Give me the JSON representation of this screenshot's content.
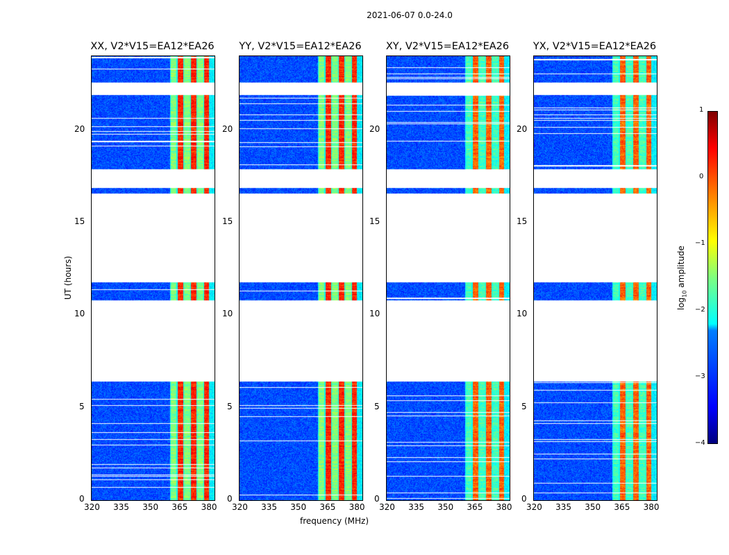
{
  "suptitle": "2021-06-07 0.0-24.0",
  "chart_data": {
    "type": "heatmap",
    "panels": [
      {
        "title": "XX, V2*V15=EA12*EA26"
      },
      {
        "title": "YY, V2*V15=EA12*EA26"
      },
      {
        "title": "XY, V2*V15=EA12*EA26"
      },
      {
        "title": "YX, V2*V15=EA12*EA26"
      }
    ],
    "xlabel": "frequency (MHz)",
    "ylabel": "UT (hours)",
    "xlim": [
      320,
      383
    ],
    "ylim": [
      0,
      24
    ],
    "xticks": [
      "320",
      "335",
      "350",
      "365",
      "380"
    ],
    "yticks": [
      "0",
      "5",
      "10",
      "15",
      "20"
    ],
    "data_time_segments_hours": [
      [
        0,
        6.45
      ],
      [
        10.8,
        11.8
      ],
      [
        16.6,
        16.9
      ],
      [
        17.9,
        21.9
      ],
      [
        22.6,
        24
      ]
    ],
    "bright_band_mhz": [
      360,
      380
    ],
    "typical_log10_amplitude": {
      "background": -3.0,
      "band_low": -1.5,
      "band_high": 0.2
    },
    "colorbar": {
      "label_main": "log",
      "label_sub": "10",
      "label_rest": " amplitude",
      "range": [
        -4,
        1
      ],
      "ticks": [
        "1",
        "0",
        "−1",
        "−2",
        "−3",
        "−4"
      ],
      "colormap": "jet"
    }
  }
}
